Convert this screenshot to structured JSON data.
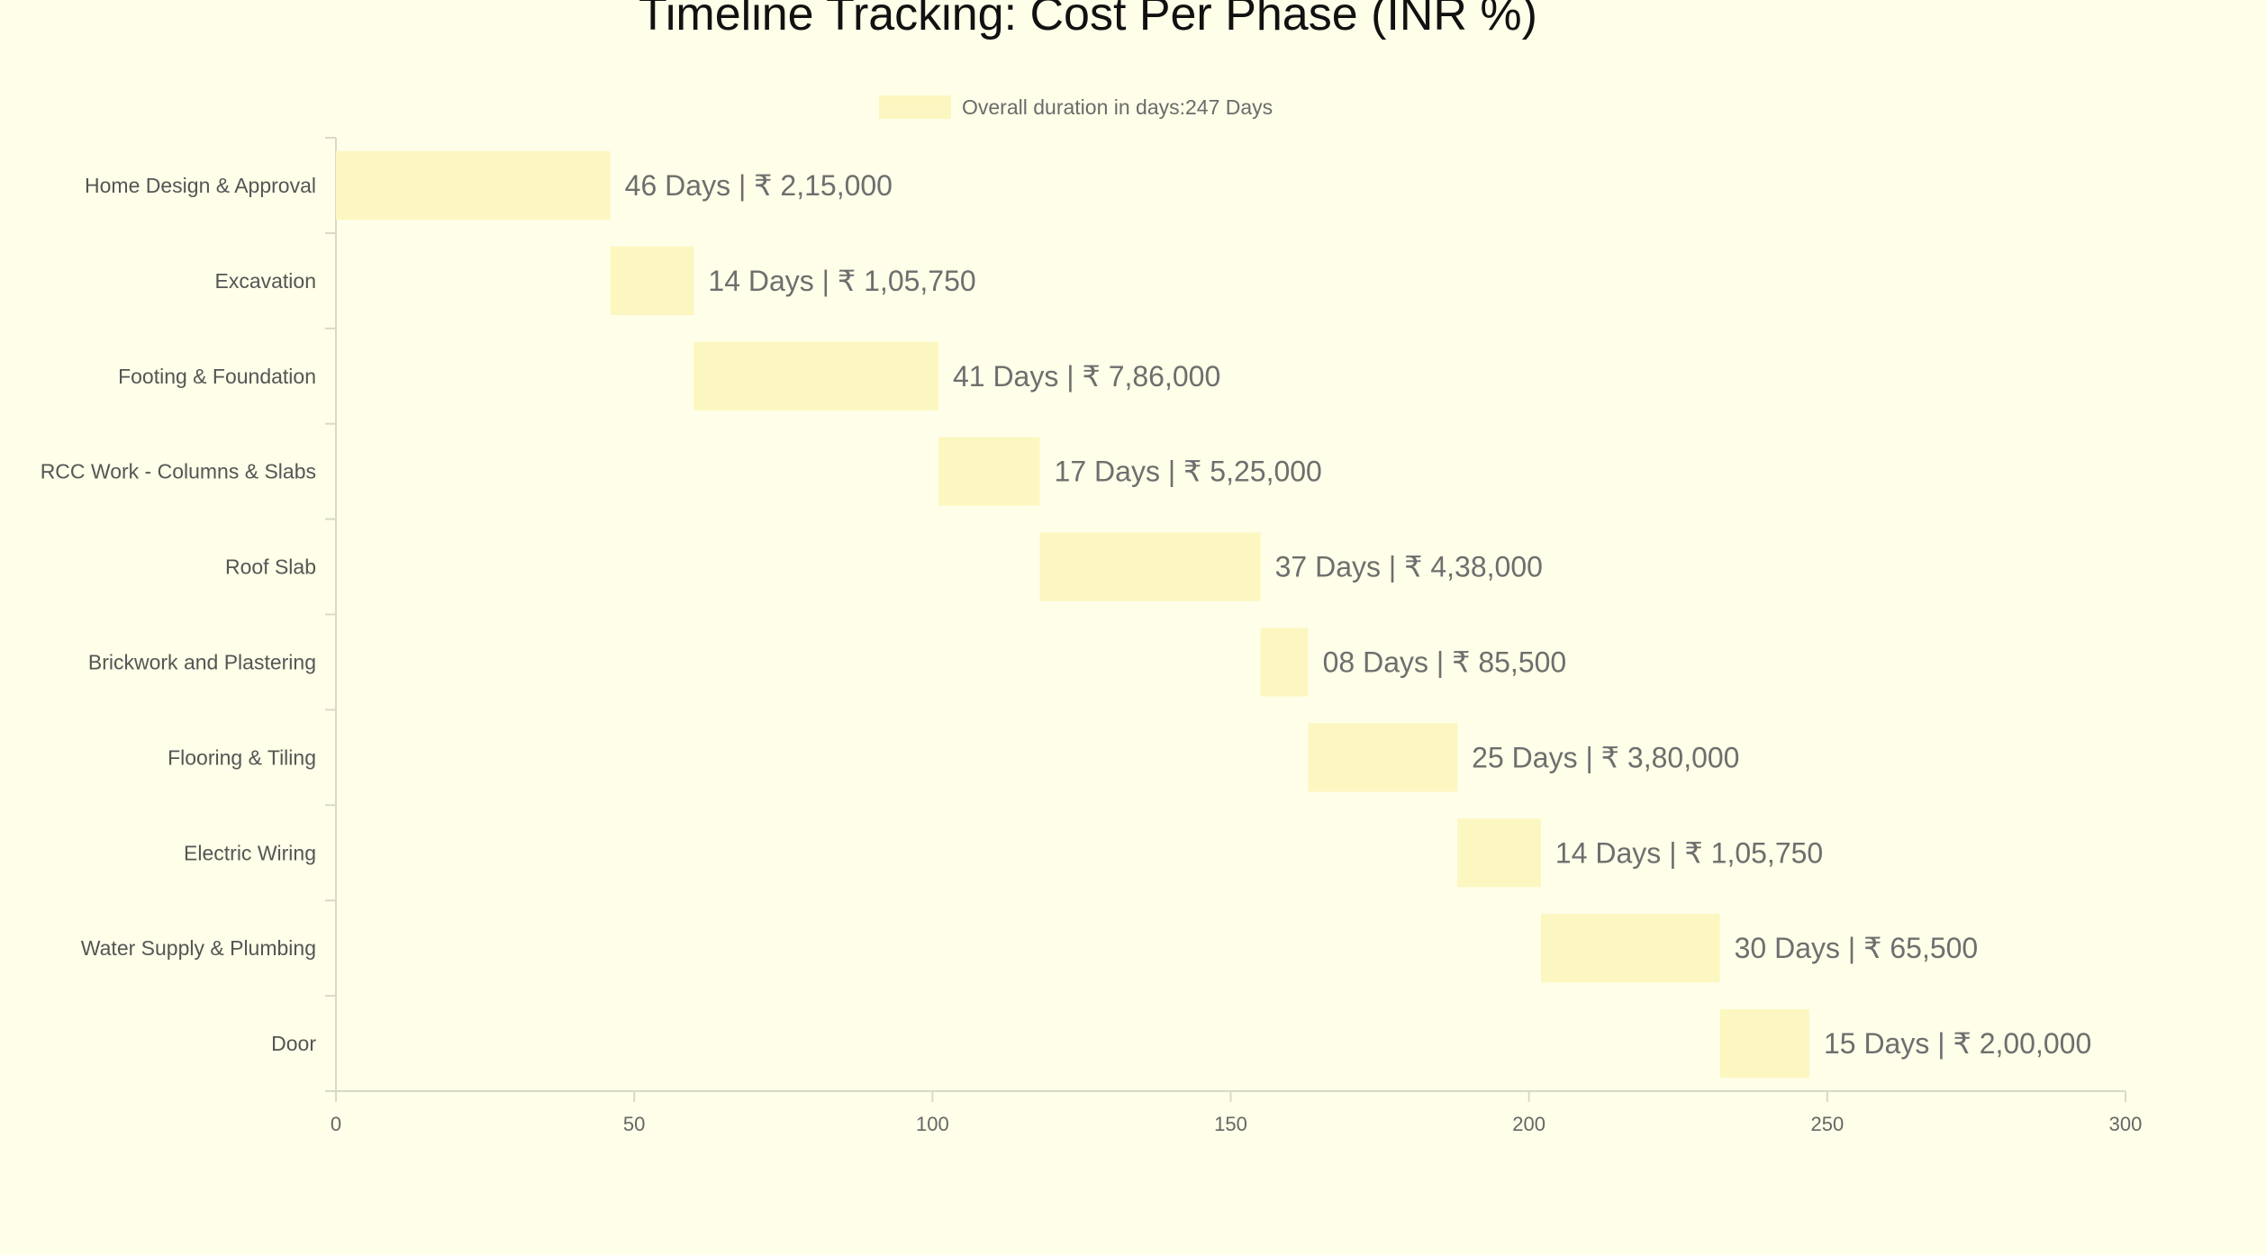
{
  "chart_data": {
    "type": "bar",
    "orientation": "horizontal",
    "stacked_floating": true,
    "title": "Timeline Tracking: Cost Per Phase (INR %)",
    "legend": {
      "label": "Overall duration in days:247 Days",
      "position": "top-center"
    },
    "categories": [
      "Home Design & Approval",
      "Excavation",
      "Footing & Foundation",
      "RCC Work - Columns & Slabs",
      "Roof Slab",
      "Brickwork and Plastering",
      "Flooring & Tiling",
      "Electric Wiring",
      "Water Supply & Plumbing",
      "Door"
    ],
    "starts": [
      0,
      46,
      60,
      101,
      118,
      155,
      163,
      188,
      202,
      232
    ],
    "durations": [
      46,
      14,
      41,
      17,
      37,
      8,
      25,
      14,
      30,
      15
    ],
    "data_labels": [
      "46 Days | ₹ 2,15,000",
      "14 Days | ₹ 1,05,750",
      "41 Days | ₹ 7,86,000",
      "17 Days | ₹ 5,25,000",
      "37 Days | ₹ 4,38,000",
      "08 Days | ₹ 85,500",
      "25 Days | ₹ 3,80,000",
      "14 Days | ₹ 1,05,750",
      "30 Days | ₹ 65,500",
      "15 Days | ₹ 2,00,000"
    ],
    "xlim": [
      0,
      300
    ],
    "xticks": [
      0,
      50,
      100,
      150,
      200,
      250,
      300
    ],
    "xlabel": "",
    "ylabel": "",
    "grid": false,
    "colors": {
      "bar": "#fcf7c1",
      "background": "#fffee8",
      "axis": "#d9d9c8"
    }
  }
}
